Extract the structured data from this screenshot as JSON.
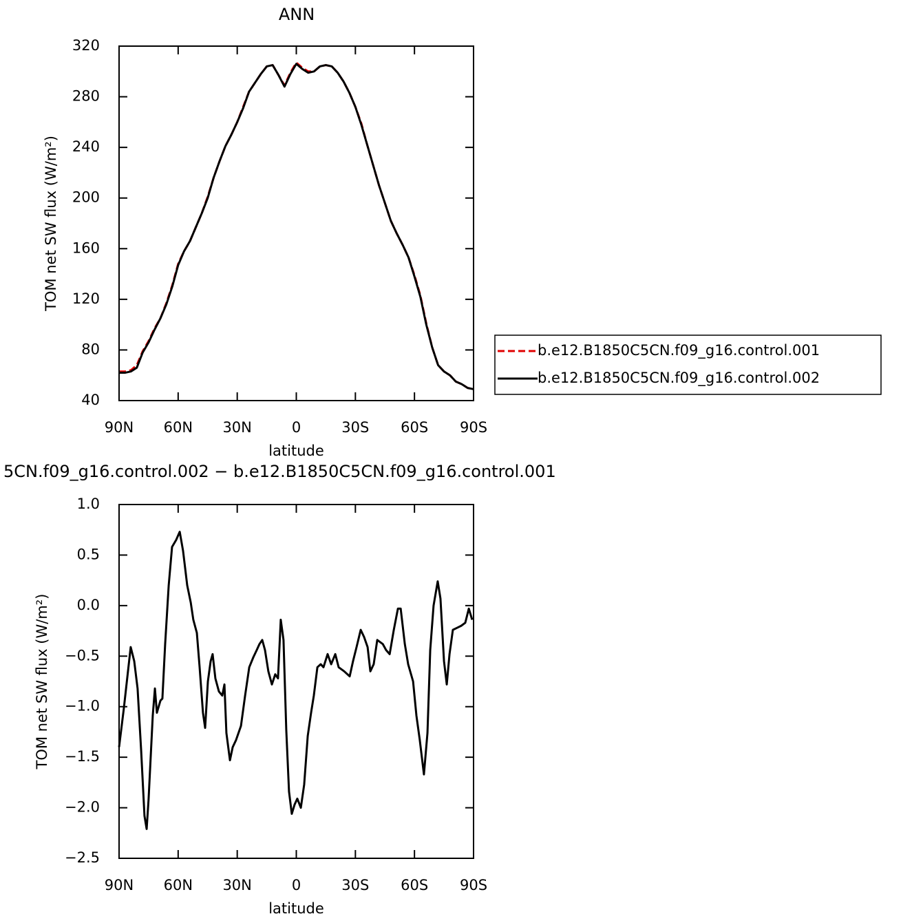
{
  "chart_data": [
    {
      "type": "line",
      "title": "ANN",
      "xlabel": "latitude",
      "ylabel": "TOM net SW flux (W/m²)",
      "x": [
        90,
        87,
        84,
        81,
        78,
        75,
        72,
        69,
        66,
        63,
        60,
        57,
        54,
        51,
        48,
        45,
        42,
        39,
        36,
        33,
        30,
        27,
        24,
        21,
        18,
        15,
        12,
        9,
        6,
        3,
        0,
        -3,
        -6,
        -9,
        -12,
        -15,
        -18,
        -21,
        -24,
        -27,
        -30,
        -33,
        -36,
        -39,
        -42,
        -45,
        -48,
        -51,
        -54,
        -57,
        -60,
        -63,
        -66,
        -69,
        -72,
        -75,
        -78,
        -81,
        -84,
        -87,
        -90
      ],
      "series": [
        {
          "name": "b.e12.B1850C5CN.f09_g16.control.001",
          "color": "#e00000",
          "dash": true,
          "values": [
            63,
            63,
            64,
            68,
            79,
            87,
            97,
            105,
            117,
            131,
            148,
            158,
            166,
            177,
            188,
            201,
            216,
            229,
            241,
            250,
            260,
            272,
            284,
            291,
            298,
            304,
            305,
            297,
            289,
            299,
            307,
            303,
            300,
            300,
            304,
            305,
            304,
            299,
            292,
            283,
            272,
            259,
            242,
            226,
            210,
            196,
            182,
            172,
            163,
            153,
            139,
            123,
            101,
            82,
            68,
            63,
            60,
            55,
            53,
            50,
            49
          ]
        },
        {
          "name": "b.e12.B1850C5CN.f09_g16.control.002",
          "color": "#000000",
          "dash": false,
          "values": [
            62,
            62,
            63,
            66,
            78,
            86,
            96,
            105,
            116,
            130,
            147,
            158,
            166,
            177,
            188,
            200,
            216,
            229,
            241,
            250,
            260,
            271,
            284,
            291,
            298,
            304,
            305,
            297,
            288,
            298,
            306,
            302,
            299,
            300,
            304,
            305,
            304,
            299,
            292,
            283,
            272,
            258,
            242,
            226,
            210,
            196,
            182,
            172,
            163,
            153,
            138,
            122,
            100,
            82,
            68,
            63,
            60,
            55,
            53,
            50,
            49
          ]
        }
      ],
      "xlim": [
        90,
        -90
      ],
      "xticks": [
        {
          "value": 90,
          "label": "90N"
        },
        {
          "value": 60,
          "label": "60N"
        },
        {
          "value": 30,
          "label": "30N"
        },
        0,
        {
          "value": -30,
          "label": "30S"
        },
        {
          "value": -60,
          "label": "60S"
        },
        {
          "value": -90,
          "label": "90S"
        }
      ],
      "ylim": [
        40,
        320
      ],
      "yticks": [
        40,
        80,
        120,
        160,
        200,
        240,
        280,
        320
      ],
      "legend": "right"
    },
    {
      "type": "line",
      "title": "5CN.f09_g16.control.002 − b.e12.B1850C5CN.f09_g16.control.001",
      "xlabel": "latitude",
      "ylabel": "TOM net SW flux (W/m²)",
      "x": [
        90,
        87.6,
        84.1,
        82.3,
        80.6,
        78.8,
        77.1,
        76,
        75,
        72.9,
        71.8,
        70.8,
        69,
        68,
        66.6,
        64.8,
        63.1,
        61,
        59.2,
        57.5,
        55.4,
        53.6,
        52.3,
        50.5,
        49.1,
        47.4,
        46.3,
        44.9,
        43.5,
        42.5,
        41.1,
        39.3,
        37.6,
        36.5,
        35.5,
        33.7,
        32.3,
        30.6,
        28.1,
        26,
        23.9,
        21.8,
        20.1,
        18.7,
        17.3,
        15.9,
        14.2,
        12.4,
        10.7,
        9.3,
        7.9,
        6.5,
        5.1,
        3.7,
        2.3,
        0.9,
        -0.5,
        -2.3,
        -4,
        -5.8,
        -7.5,
        -8.9,
        -10.7,
        -12.4,
        -13.8,
        -15.9,
        -17.7,
        -19.8,
        -21.5,
        -24.3,
        -27.1,
        -28.8,
        -30.6,
        -32.7,
        -34.4,
        -36.2,
        -37.6,
        -39.3,
        -41.1,
        -43.9,
        -45.6,
        -47.4,
        -49.5,
        -51.6,
        -53,
        -55.1,
        -56.8,
        -59.3,
        -61,
        -62.7,
        -64.8,
        -66.6,
        -68,
        -69.7,
        -71.8,
        -73.2,
        -75,
        -76.4,
        -77.8,
        -79.5,
        -81.6,
        -83.7,
        -85.8,
        -87.6,
        -89.3
      ],
      "series": [
        {
          "color": "#000000",
          "dash": false,
          "values": [
            -1.4,
            -1.02,
            -0.41,
            -0.55,
            -0.82,
            -1.43,
            -2.08,
            -2.21,
            -1.91,
            -1.09,
            -0.82,
            -1.06,
            -0.94,
            -0.92,
            -0.38,
            0.2,
            0.58,
            0.65,
            0.73,
            0.54,
            0.2,
            0.03,
            -0.14,
            -0.27,
            -0.61,
            -1.06,
            -1.21,
            -0.75,
            -0.55,
            -0.48,
            -0.72,
            -0.85,
            -0.89,
            -0.78,
            -1.26,
            -1.53,
            -1.4,
            -1.33,
            -1.19,
            -0.89,
            -0.61,
            -0.51,
            -0.44,
            -0.38,
            -0.34,
            -0.44,
            -0.65,
            -0.78,
            -0.68,
            -0.72,
            -0.14,
            -0.34,
            -1.23,
            -1.84,
            -2.06,
            -1.97,
            -1.91,
            -2.0,
            -1.77,
            -1.29,
            -1.06,
            -0.89,
            -0.61,
            -0.58,
            -0.61,
            -0.48,
            -0.58,
            -0.48,
            -0.61,
            -0.65,
            -0.7,
            -0.55,
            -0.41,
            -0.24,
            -0.31,
            -0.41,
            -0.65,
            -0.58,
            -0.34,
            -0.38,
            -0.44,
            -0.48,
            -0.24,
            -0.03,
            -0.03,
            -0.38,
            -0.58,
            -0.75,
            -1.09,
            -1.33,
            -1.67,
            -1.26,
            -0.44,
            0.0,
            0.24,
            0.07,
            -0.55,
            -0.78,
            -0.48,
            -0.24,
            -0.22,
            -0.2,
            -0.17,
            -0.03,
            -0.14
          ]
        }
      ],
      "xlim": [
        90,
        -90
      ],
      "xticks": [
        {
          "value": 90,
          "label": "90N"
        },
        {
          "value": 60,
          "label": "60N"
        },
        {
          "value": 30,
          "label": "30N"
        },
        0,
        {
          "value": -30,
          "label": "30S"
        },
        {
          "value": -60,
          "label": "60S"
        },
        {
          "value": -90,
          "label": "90S"
        }
      ],
      "ylim": [
        -2.5,
        1
      ],
      "yticks": [
        {
          "value": -2.5,
          "label": "−2.5"
        },
        {
          "value": -2,
          "label": "−2.0"
        },
        {
          "value": -1.5,
          "label": "−1.5"
        },
        {
          "value": -1,
          "label": "−1.0"
        },
        {
          "value": -0.5,
          "label": "−0.5"
        },
        {
          "value": 0,
          "label": "0.0"
        },
        0.5,
        {
          "value": 1,
          "label": "1.0"
        }
      ]
    }
  ]
}
